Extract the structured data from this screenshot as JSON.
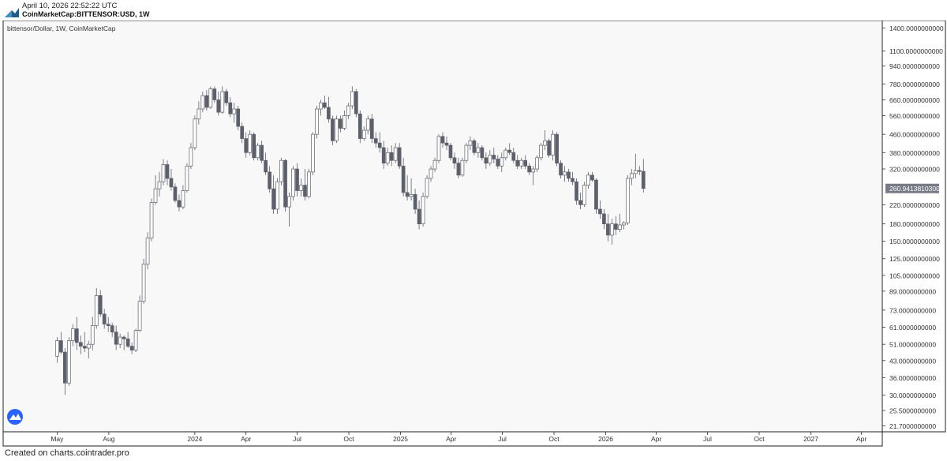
{
  "header": {
    "timestamp": "April 10, 2026 22:52:22 UTC",
    "symbol_line": "CoinMarketCap:BITTENSOR:USD, 1W"
  },
  "footer": {
    "text": "Created on charts.cointrader.pro"
  },
  "chart_data": {
    "type": "candlestick",
    "title": "bittensor/Dollar, 1W, CoinMarketCap",
    "scale": "log",
    "grid": false,
    "colors": {
      "bull_body": "#ffffff",
      "bear_body": "#5d606b",
      "wick": "#5d606b",
      "last_price_tag": "#787b86",
      "pane_bg": "#f8f8f8"
    },
    "y_ticks": [
      "1400.0000000000",
      "1100.0000000000",
      "940.0000000000",
      "780.0000000000",
      "660.0000000000",
      "560.0000000000",
      "460.0000000000",
      "380.0000000000",
      "320.0000000000",
      "260.9413810300",
      "220.0000000000",
      "180.0000000000",
      "150.0000000000",
      "125.0000000000",
      "105.0000000000",
      "89.0000000000",
      "73.0000000000",
      "61.0000000000",
      "51.0000000000",
      "43.0000000000",
      "36.0000000000",
      "30.0000000000",
      "25.5000000000",
      "21.7000000000"
    ],
    "y_tick_values": [
      1400,
      1100,
      940,
      780,
      660,
      560,
      460,
      380,
      320,
      260.94,
      220,
      180,
      150,
      125,
      105,
      89,
      73,
      61,
      51,
      43,
      36,
      30,
      25.5,
      21.7
    ],
    "last_price": 260.94138103,
    "last_price_label": "260.9413810300",
    "x_ticks": [
      {
        "label": "May",
        "date": "2023-05-01"
      },
      {
        "label": "Aug",
        "date": "2023-08-01"
      },
      {
        "label": "2024",
        "date": "2024-01-01"
      },
      {
        "label": "Apr",
        "date": "2024-04-01"
      },
      {
        "label": "Jul",
        "date": "2024-07-01"
      },
      {
        "label": "Oct",
        "date": "2024-10-01"
      },
      {
        "label": "2025",
        "date": "2025-01-01"
      },
      {
        "label": "Apr",
        "date": "2025-04-01"
      },
      {
        "label": "Jul",
        "date": "2025-07-01"
      },
      {
        "label": "Oct",
        "date": "2025-10-01"
      },
      {
        "label": "2026",
        "date": "2026-01-01"
      },
      {
        "label": "Apr",
        "date": "2026-04-01"
      },
      {
        "label": "Jul",
        "date": "2026-07-01"
      },
      {
        "label": "Oct",
        "date": "2026-10-01"
      },
      {
        "label": "2027",
        "date": "2027-01-01"
      },
      {
        "label": "Apr",
        "date": "2027-04-01"
      }
    ],
    "x_range": [
      "2023-01-25",
      "2027-05-08"
    ],
    "y_range": [
      20.4,
      1515
    ],
    "candles": [
      {
        "t": "2023-05-01",
        "o": 45,
        "h": 55,
        "l": 42,
        "c": 53
      },
      {
        "t": "2023-05-08",
        "o": 53,
        "h": 58,
        "l": 46,
        "c": 47
      },
      {
        "t": "2023-05-15",
        "o": 47,
        "h": 49,
        "l": 30,
        "c": 34
      },
      {
        "t": "2023-05-22",
        "o": 34,
        "h": 55,
        "l": 33,
        "c": 53
      },
      {
        "t": "2023-05-29",
        "o": 53,
        "h": 63,
        "l": 50,
        "c": 60
      },
      {
        "t": "2023-06-05",
        "o": 60,
        "h": 68,
        "l": 48,
        "c": 52
      },
      {
        "t": "2023-06-12",
        "o": 52,
        "h": 56,
        "l": 46,
        "c": 50
      },
      {
        "t": "2023-06-19",
        "o": 50,
        "h": 58,
        "l": 47,
        "c": 49
      },
      {
        "t": "2023-06-26",
        "o": 49,
        "h": 53,
        "l": 44,
        "c": 51
      },
      {
        "t": "2023-07-03",
        "o": 51,
        "h": 68,
        "l": 48,
        "c": 62
      },
      {
        "t": "2023-07-10",
        "o": 62,
        "h": 92,
        "l": 60,
        "c": 85
      },
      {
        "t": "2023-07-17",
        "o": 85,
        "h": 90,
        "l": 68,
        "c": 70
      },
      {
        "t": "2023-07-24",
        "o": 70,
        "h": 74,
        "l": 60,
        "c": 63
      },
      {
        "t": "2023-07-31",
        "o": 63,
        "h": 68,
        "l": 58,
        "c": 62
      },
      {
        "t": "2023-08-07",
        "o": 62,
        "h": 64,
        "l": 55,
        "c": 58
      },
      {
        "t": "2023-08-14",
        "o": 58,
        "h": 62,
        "l": 48,
        "c": 51
      },
      {
        "t": "2023-08-21",
        "o": 51,
        "h": 57,
        "l": 49,
        "c": 55
      },
      {
        "t": "2023-08-28",
        "o": 55,
        "h": 56,
        "l": 48,
        "c": 54
      },
      {
        "t": "2023-09-04",
        "o": 54,
        "h": 58,
        "l": 49,
        "c": 50
      },
      {
        "t": "2023-09-11",
        "o": 50,
        "h": 52,
        "l": 46,
        "c": 48
      },
      {
        "t": "2023-09-18",
        "o": 48,
        "h": 60,
        "l": 47,
        "c": 59
      },
      {
        "t": "2023-09-25",
        "o": 59,
        "h": 85,
        "l": 58,
        "c": 80
      },
      {
        "t": "2023-10-02",
        "o": 80,
        "h": 125,
        "l": 78,
        "c": 118
      },
      {
        "t": "2023-10-09",
        "o": 118,
        "h": 165,
        "l": 112,
        "c": 155
      },
      {
        "t": "2023-10-16",
        "o": 155,
        "h": 235,
        "l": 150,
        "c": 225
      },
      {
        "t": "2023-10-23",
        "o": 225,
        "h": 300,
        "l": 220,
        "c": 260
      },
      {
        "t": "2023-10-30",
        "o": 260,
        "h": 310,
        "l": 240,
        "c": 280
      },
      {
        "t": "2023-11-06",
        "o": 280,
        "h": 355,
        "l": 270,
        "c": 335
      },
      {
        "t": "2023-11-13",
        "o": 335,
        "h": 350,
        "l": 270,
        "c": 290
      },
      {
        "t": "2023-11-20",
        "o": 290,
        "h": 320,
        "l": 255,
        "c": 265
      },
      {
        "t": "2023-11-27",
        "o": 265,
        "h": 275,
        "l": 225,
        "c": 230
      },
      {
        "t": "2023-12-04",
        "o": 230,
        "h": 245,
        "l": 205,
        "c": 215
      },
      {
        "t": "2023-12-11",
        "o": 215,
        "h": 270,
        "l": 210,
        "c": 255
      },
      {
        "t": "2023-12-18",
        "o": 255,
        "h": 340,
        "l": 250,
        "c": 330
      },
      {
        "t": "2023-12-25",
        "o": 330,
        "h": 420,
        "l": 320,
        "c": 400
      },
      {
        "t": "2024-01-01",
        "o": 400,
        "h": 560,
        "l": 390,
        "c": 540
      },
      {
        "t": "2024-01-08",
        "o": 540,
        "h": 650,
        "l": 510,
        "c": 600
      },
      {
        "t": "2024-01-15",
        "o": 600,
        "h": 720,
        "l": 580,
        "c": 690
      },
      {
        "t": "2024-01-22",
        "o": 690,
        "h": 730,
        "l": 590,
        "c": 610
      },
      {
        "t": "2024-01-29",
        "o": 610,
        "h": 760,
        "l": 600,
        "c": 740
      },
      {
        "t": "2024-02-05",
        "o": 740,
        "h": 760,
        "l": 640,
        "c": 660
      },
      {
        "t": "2024-02-12",
        "o": 660,
        "h": 720,
        "l": 560,
        "c": 580
      },
      {
        "t": "2024-02-19",
        "o": 580,
        "h": 760,
        "l": 570,
        "c": 720
      },
      {
        "t": "2024-02-26",
        "o": 720,
        "h": 740,
        "l": 620,
        "c": 640
      },
      {
        "t": "2024-03-04",
        "o": 640,
        "h": 680,
        "l": 550,
        "c": 570
      },
      {
        "t": "2024-03-11",
        "o": 570,
        "h": 640,
        "l": 520,
        "c": 600
      },
      {
        "t": "2024-03-18",
        "o": 600,
        "h": 620,
        "l": 480,
        "c": 500
      },
      {
        "t": "2024-03-25",
        "o": 500,
        "h": 520,
        "l": 420,
        "c": 440
      },
      {
        "t": "2024-04-01",
        "o": 440,
        "h": 470,
        "l": 360,
        "c": 380
      },
      {
        "t": "2024-04-08",
        "o": 380,
        "h": 480,
        "l": 370,
        "c": 460
      },
      {
        "t": "2024-04-15",
        "o": 460,
        "h": 470,
        "l": 350,
        "c": 360
      },
      {
        "t": "2024-04-22",
        "o": 360,
        "h": 420,
        "l": 350,
        "c": 410
      },
      {
        "t": "2024-04-29",
        "o": 410,
        "h": 430,
        "l": 340,
        "c": 350
      },
      {
        "t": "2024-05-06",
        "o": 350,
        "h": 380,
        "l": 300,
        "c": 310
      },
      {
        "t": "2024-05-13",
        "o": 310,
        "h": 330,
        "l": 250,
        "c": 260
      },
      {
        "t": "2024-05-20",
        "o": 260,
        "h": 300,
        "l": 200,
        "c": 210
      },
      {
        "t": "2024-05-27",
        "o": 210,
        "h": 290,
        "l": 200,
        "c": 280
      },
      {
        "t": "2024-06-03",
        "o": 280,
        "h": 360,
        "l": 270,
        "c": 350
      },
      {
        "t": "2024-06-10",
        "o": 350,
        "h": 355,
        "l": 205,
        "c": 215
      },
      {
        "t": "2024-06-17",
        "o": 215,
        "h": 250,
        "l": 175,
        "c": 240
      },
      {
        "t": "2024-06-24",
        "o": 240,
        "h": 330,
        "l": 230,
        "c": 320
      },
      {
        "t": "2024-07-01",
        "o": 320,
        "h": 340,
        "l": 240,
        "c": 255
      },
      {
        "t": "2024-07-08",
        "o": 255,
        "h": 290,
        "l": 240,
        "c": 270
      },
      {
        "t": "2024-07-15",
        "o": 270,
        "h": 320,
        "l": 230,
        "c": 240
      },
      {
        "t": "2024-07-22",
        "o": 240,
        "h": 320,
        "l": 235,
        "c": 310
      },
      {
        "t": "2024-07-29",
        "o": 310,
        "h": 470,
        "l": 300,
        "c": 460
      },
      {
        "t": "2024-08-05",
        "o": 460,
        "h": 620,
        "l": 440,
        "c": 600
      },
      {
        "t": "2024-08-12",
        "o": 600,
        "h": 660,
        "l": 560,
        "c": 640
      },
      {
        "t": "2024-08-19",
        "o": 640,
        "h": 690,
        "l": 600,
        "c": 610
      },
      {
        "t": "2024-08-26",
        "o": 610,
        "h": 680,
        "l": 520,
        "c": 540
      },
      {
        "t": "2024-09-02",
        "o": 540,
        "h": 560,
        "l": 410,
        "c": 430
      },
      {
        "t": "2024-09-09",
        "o": 430,
        "h": 560,
        "l": 420,
        "c": 540
      },
      {
        "t": "2024-09-16",
        "o": 540,
        "h": 560,
        "l": 470,
        "c": 490
      },
      {
        "t": "2024-09-23",
        "o": 490,
        "h": 590,
        "l": 480,
        "c": 560
      },
      {
        "t": "2024-09-30",
        "o": 560,
        "h": 640,
        "l": 540,
        "c": 620
      },
      {
        "t": "2024-10-07",
        "o": 620,
        "h": 760,
        "l": 600,
        "c": 720
      },
      {
        "t": "2024-10-14",
        "o": 720,
        "h": 740,
        "l": 550,
        "c": 570
      },
      {
        "t": "2024-10-21",
        "o": 570,
        "h": 590,
        "l": 420,
        "c": 440
      },
      {
        "t": "2024-10-28",
        "o": 440,
        "h": 500,
        "l": 430,
        "c": 480
      },
      {
        "t": "2024-11-04",
        "o": 480,
        "h": 560,
        "l": 460,
        "c": 540
      },
      {
        "t": "2024-11-11",
        "o": 540,
        "h": 570,
        "l": 420,
        "c": 440
      },
      {
        "t": "2024-11-18",
        "o": 440,
        "h": 470,
        "l": 400,
        "c": 420
      },
      {
        "t": "2024-11-25",
        "o": 420,
        "h": 470,
        "l": 380,
        "c": 400
      },
      {
        "t": "2024-12-02",
        "o": 400,
        "h": 430,
        "l": 320,
        "c": 340
      },
      {
        "t": "2024-12-09",
        "o": 340,
        "h": 400,
        "l": 330,
        "c": 380
      },
      {
        "t": "2024-12-16",
        "o": 380,
        "h": 410,
        "l": 330,
        "c": 350
      },
      {
        "t": "2024-12-23",
        "o": 350,
        "h": 420,
        "l": 340,
        "c": 400
      },
      {
        "t": "2024-12-30",
        "o": 400,
        "h": 420,
        "l": 320,
        "c": 330
      },
      {
        "t": "2025-01-06",
        "o": 330,
        "h": 360,
        "l": 240,
        "c": 250
      },
      {
        "t": "2025-01-13",
        "o": 250,
        "h": 300,
        "l": 230,
        "c": 240
      },
      {
        "t": "2025-01-20",
        "o": 240,
        "h": 290,
        "l": 230,
        "c": 245
      },
      {
        "t": "2025-01-27",
        "o": 245,
        "h": 260,
        "l": 200,
        "c": 210
      },
      {
        "t": "2025-02-03",
        "o": 210,
        "h": 230,
        "l": 170,
        "c": 180
      },
      {
        "t": "2025-02-10",
        "o": 180,
        "h": 250,
        "l": 175,
        "c": 240
      },
      {
        "t": "2025-02-17",
        "o": 240,
        "h": 300,
        "l": 235,
        "c": 290
      },
      {
        "t": "2025-02-24",
        "o": 290,
        "h": 330,
        "l": 280,
        "c": 320
      },
      {
        "t": "2025-03-03",
        "o": 320,
        "h": 360,
        "l": 310,
        "c": 350
      },
      {
        "t": "2025-03-10",
        "o": 350,
        "h": 460,
        "l": 340,
        "c": 450
      },
      {
        "t": "2025-03-17",
        "o": 450,
        "h": 470,
        "l": 400,
        "c": 420
      },
      {
        "t": "2025-03-24",
        "o": 420,
        "h": 450,
        "l": 390,
        "c": 410
      },
      {
        "t": "2025-03-31",
        "o": 410,
        "h": 420,
        "l": 350,
        "c": 360
      },
      {
        "t": "2025-04-07",
        "o": 360,
        "h": 380,
        "l": 320,
        "c": 340
      },
      {
        "t": "2025-04-14",
        "o": 340,
        "h": 360,
        "l": 290,
        "c": 300
      },
      {
        "t": "2025-04-21",
        "o": 300,
        "h": 360,
        "l": 295,
        "c": 350
      },
      {
        "t": "2025-04-28",
        "o": 350,
        "h": 420,
        "l": 340,
        "c": 410
      },
      {
        "t": "2025-05-05",
        "o": 410,
        "h": 450,
        "l": 390,
        "c": 430
      },
      {
        "t": "2025-05-12",
        "o": 430,
        "h": 440,
        "l": 370,
        "c": 380
      },
      {
        "t": "2025-05-19",
        "o": 380,
        "h": 420,
        "l": 360,
        "c": 400
      },
      {
        "t": "2025-05-26",
        "o": 400,
        "h": 410,
        "l": 350,
        "c": 360
      },
      {
        "t": "2025-06-02",
        "o": 360,
        "h": 380,
        "l": 320,
        "c": 340
      },
      {
        "t": "2025-06-09",
        "o": 340,
        "h": 390,
        "l": 330,
        "c": 370
      },
      {
        "t": "2025-06-16",
        "o": 370,
        "h": 400,
        "l": 340,
        "c": 355
      },
      {
        "t": "2025-06-23",
        "o": 355,
        "h": 370,
        "l": 320,
        "c": 330
      },
      {
        "t": "2025-06-30",
        "o": 330,
        "h": 380,
        "l": 310,
        "c": 360
      },
      {
        "t": "2025-07-07",
        "o": 360,
        "h": 400,
        "l": 350,
        "c": 390
      },
      {
        "t": "2025-07-14",
        "o": 390,
        "h": 420,
        "l": 370,
        "c": 380
      },
      {
        "t": "2025-07-21",
        "o": 380,
        "h": 400,
        "l": 340,
        "c": 350
      },
      {
        "t": "2025-07-28",
        "o": 350,
        "h": 370,
        "l": 320,
        "c": 330
      },
      {
        "t": "2025-08-04",
        "o": 330,
        "h": 360,
        "l": 320,
        "c": 350
      },
      {
        "t": "2025-08-11",
        "o": 350,
        "h": 370,
        "l": 320,
        "c": 330
      },
      {
        "t": "2025-08-18",
        "o": 330,
        "h": 340,
        "l": 300,
        "c": 310
      },
      {
        "t": "2025-08-25",
        "o": 310,
        "h": 330,
        "l": 270,
        "c": 320
      },
      {
        "t": "2025-09-01",
        "o": 320,
        "h": 370,
        "l": 310,
        "c": 360
      },
      {
        "t": "2025-09-08",
        "o": 360,
        "h": 420,
        "l": 350,
        "c": 410
      },
      {
        "t": "2025-09-15",
        "o": 410,
        "h": 480,
        "l": 390,
        "c": 430
      },
      {
        "t": "2025-09-22",
        "o": 430,
        "h": 440,
        "l": 360,
        "c": 370
      },
      {
        "t": "2025-09-29",
        "o": 370,
        "h": 480,
        "l": 350,
        "c": 460
      },
      {
        "t": "2025-10-06",
        "o": 460,
        "h": 470,
        "l": 330,
        "c": 340
      },
      {
        "t": "2025-10-13",
        "o": 340,
        "h": 350,
        "l": 290,
        "c": 300
      },
      {
        "t": "2025-10-20",
        "o": 300,
        "h": 330,
        "l": 280,
        "c": 310
      },
      {
        "t": "2025-10-27",
        "o": 310,
        "h": 320,
        "l": 280,
        "c": 290
      },
      {
        "t": "2025-11-03",
        "o": 290,
        "h": 310,
        "l": 270,
        "c": 280
      },
      {
        "t": "2025-11-10",
        "o": 280,
        "h": 290,
        "l": 220,
        "c": 230
      },
      {
        "t": "2025-11-17",
        "o": 230,
        "h": 250,
        "l": 210,
        "c": 220
      },
      {
        "t": "2025-11-24",
        "o": 220,
        "h": 280,
        "l": 215,
        "c": 270
      },
      {
        "t": "2025-12-01",
        "o": 270,
        "h": 310,
        "l": 260,
        "c": 300
      },
      {
        "t": "2025-12-08",
        "o": 300,
        "h": 310,
        "l": 280,
        "c": 285
      },
      {
        "t": "2025-12-15",
        "o": 285,
        "h": 290,
        "l": 200,
        "c": 210
      },
      {
        "t": "2025-12-22",
        "o": 210,
        "h": 230,
        "l": 190,
        "c": 200
      },
      {
        "t": "2025-12-29",
        "o": 200,
        "h": 210,
        "l": 170,
        "c": 180
      },
      {
        "t": "2026-01-05",
        "o": 180,
        "h": 200,
        "l": 150,
        "c": 160
      },
      {
        "t": "2026-01-12",
        "o": 160,
        "h": 190,
        "l": 145,
        "c": 180
      },
      {
        "t": "2026-01-19",
        "o": 180,
        "h": 195,
        "l": 160,
        "c": 170
      },
      {
        "t": "2026-01-26",
        "o": 170,
        "h": 200,
        "l": 165,
        "c": 178
      },
      {
        "t": "2026-02-02",
        "o": 178,
        "h": 185,
        "l": 170,
        "c": 182
      },
      {
        "t": "2026-02-09",
        "o": 182,
        "h": 300,
        "l": 178,
        "c": 290
      },
      {
        "t": "2026-02-16",
        "o": 290,
        "h": 320,
        "l": 270,
        "c": 305
      },
      {
        "t": "2026-02-23",
        "o": 305,
        "h": 375,
        "l": 290,
        "c": 315
      },
      {
        "t": "2026-03-02",
        "o": 315,
        "h": 330,
        "l": 300,
        "c": 312
      },
      {
        "t": "2026-03-09",
        "o": 312,
        "h": 355,
        "l": 250,
        "c": 261
      }
    ]
  }
}
